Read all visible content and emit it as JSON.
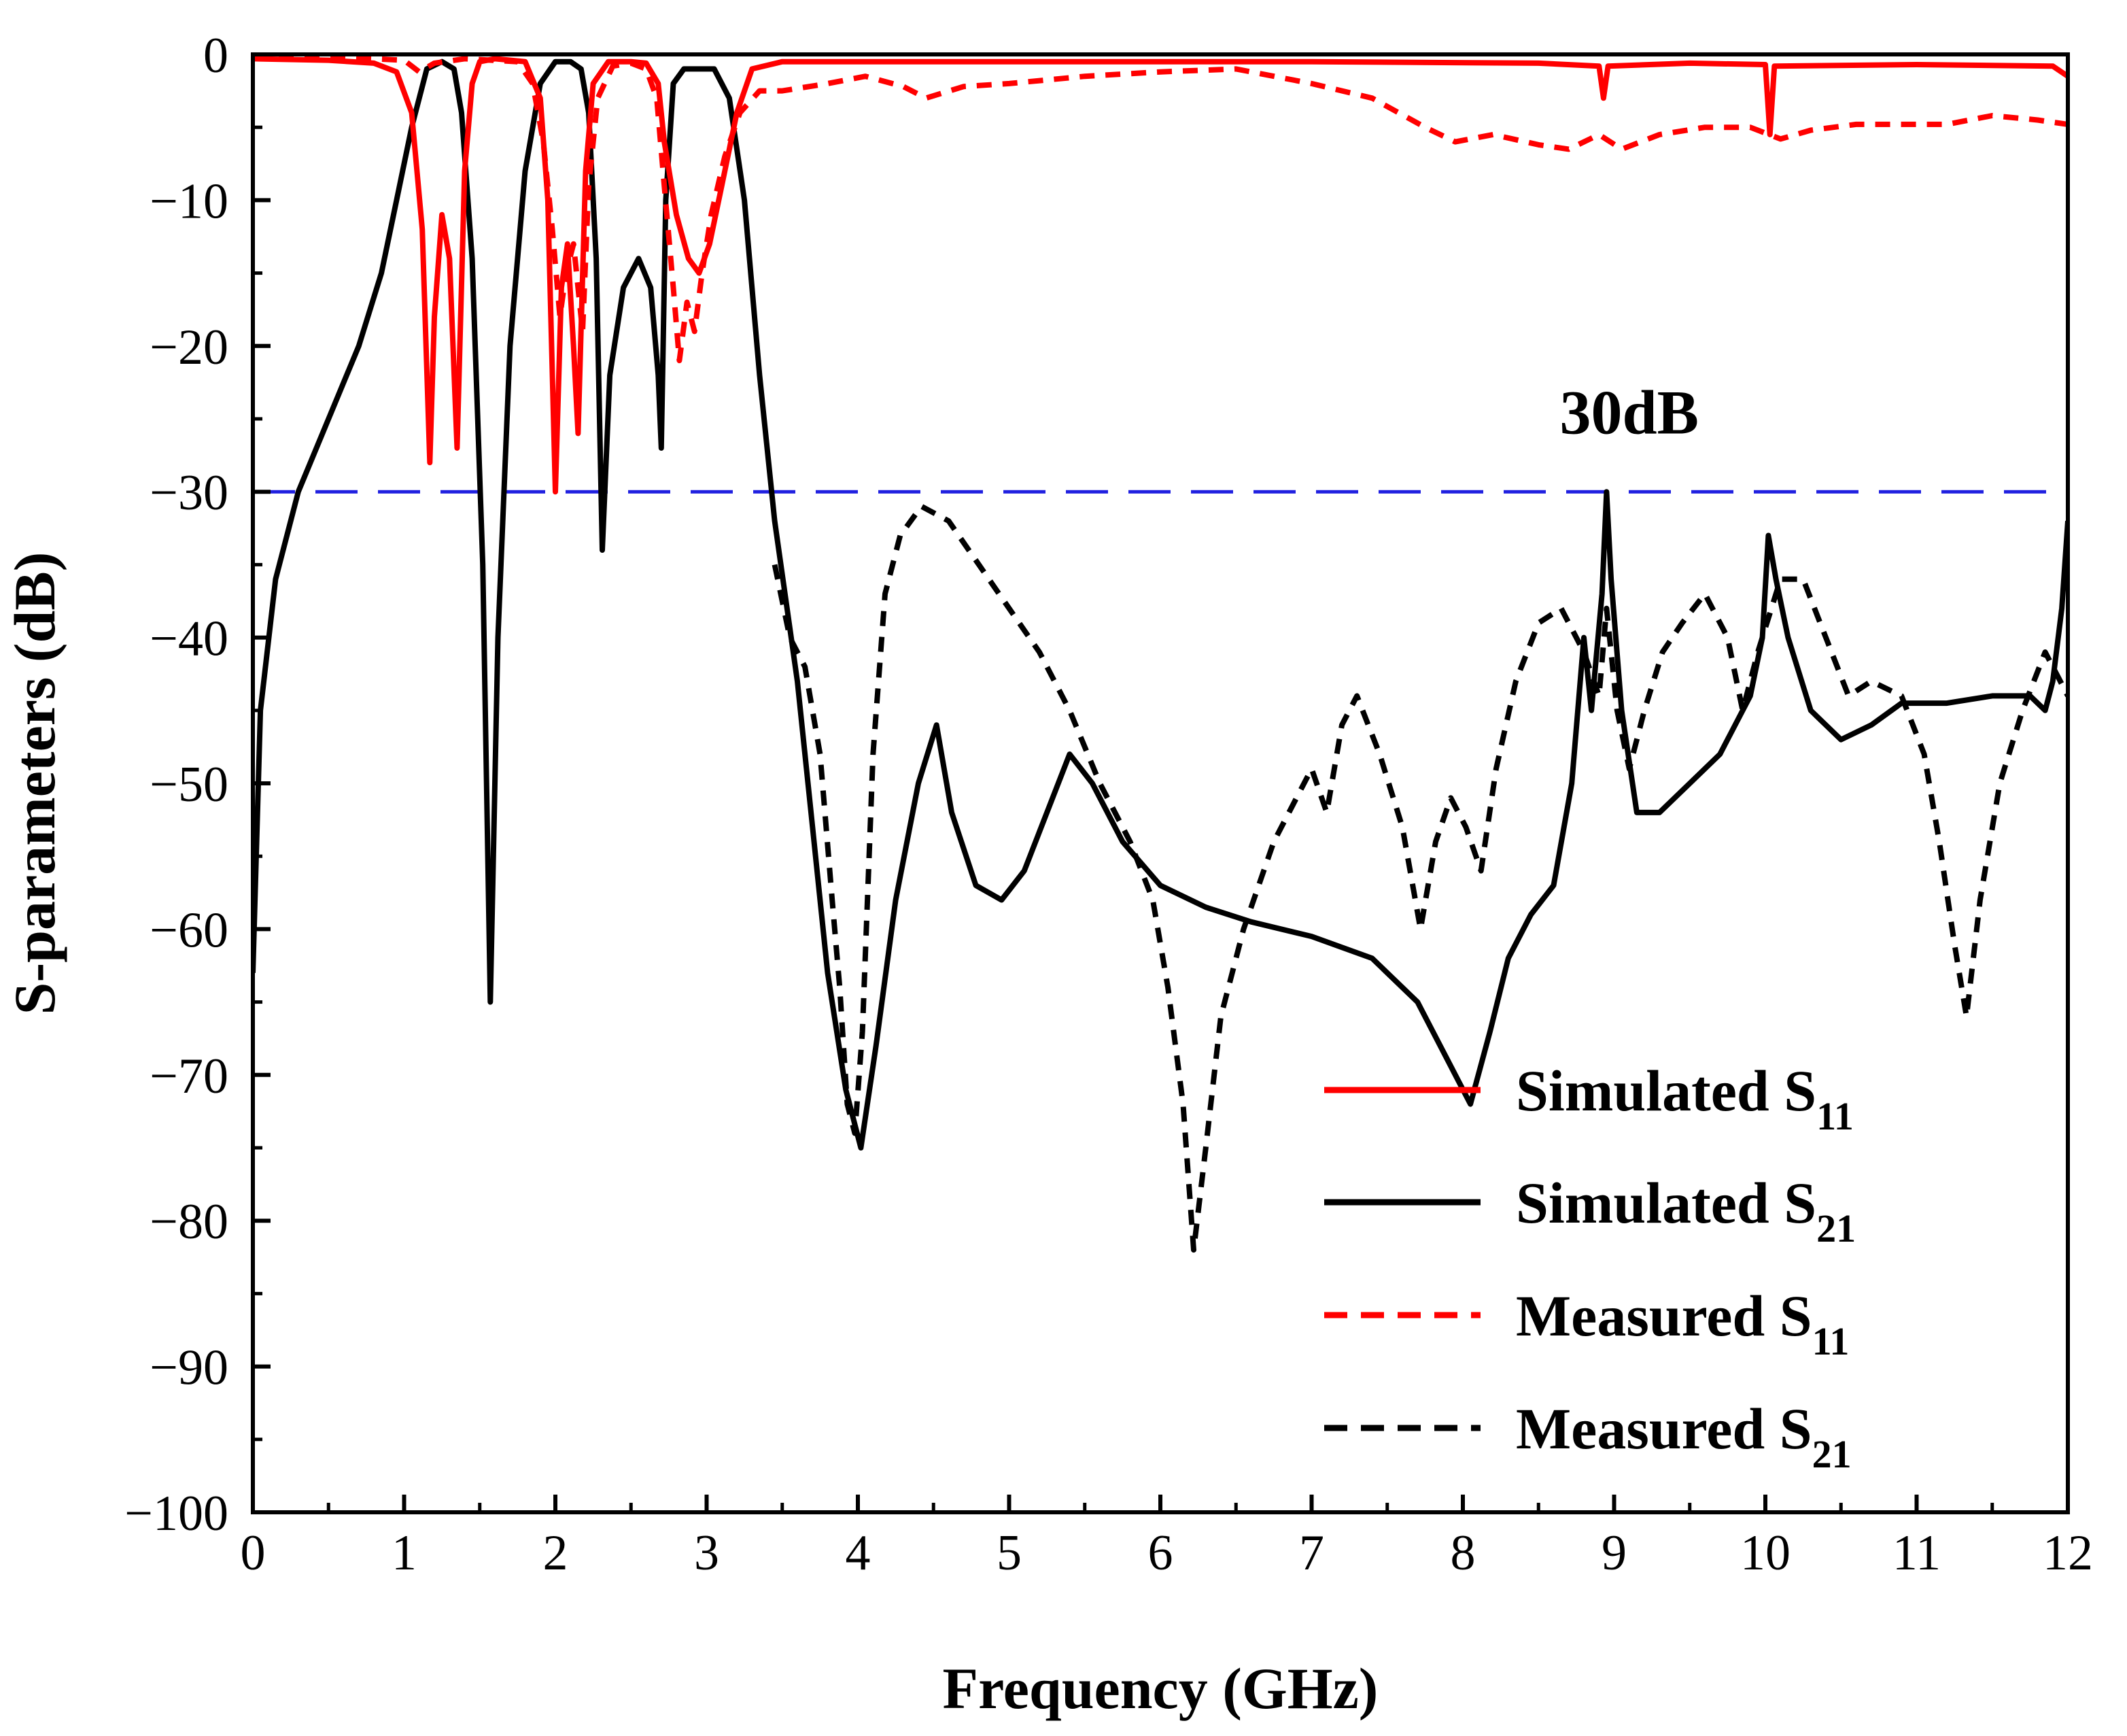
{
  "chart_data": {
    "type": "line",
    "title": "",
    "xlabel": "Frequency (GHz)",
    "ylabel": "S-parameters (dB)",
    "xlim": [
      0,
      12
    ],
    "ylim": [
      -100,
      0
    ],
    "x_ticks": [
      "0",
      "1",
      "2",
      "3",
      "4",
      "5",
      "6",
      "7",
      "8",
      "9",
      "10",
      "11",
      "12"
    ],
    "y_ticks": [
      "0",
      "−10",
      "−20",
      "−30",
      "−40",
      "−50",
      "−60",
      "−70",
      "−80",
      "−90",
      "−100"
    ],
    "grid": false,
    "legend_position": "bottom-right",
    "reference_line": {
      "y": -30,
      "color": "#1f1fe0",
      "style": "dashed"
    },
    "annotation": {
      "text": "30dB",
      "x": 9.1,
      "y": -26
    },
    "series": [
      {
        "name": "Simulated S",
        "subscript": "11",
        "color": "#ff0000",
        "style": "solid",
        "points": [
          [
            0,
            -0.3
          ],
          [
            0.5,
            -0.4
          ],
          [
            0.8,
            -0.6
          ],
          [
            0.95,
            -1.2
          ],
          [
            1.05,
            -4
          ],
          [
            1.12,
            -12
          ],
          [
            1.17,
            -28
          ],
          [
            1.2,
            -18
          ],
          [
            1.25,
            -11
          ],
          [
            1.3,
            -14
          ],
          [
            1.35,
            -27
          ],
          [
            1.4,
            -8
          ],
          [
            1.45,
            -2
          ],
          [
            1.5,
            -0.5
          ],
          [
            1.6,
            -0.3
          ],
          [
            1.8,
            -0.5
          ],
          [
            1.9,
            -3
          ],
          [
            1.95,
            -10
          ],
          [
            2.0,
            -30
          ],
          [
            2.04,
            -16
          ],
          [
            2.08,
            -13
          ],
          [
            2.12,
            -20
          ],
          [
            2.15,
            -26
          ],
          [
            2.2,
            -8
          ],
          [
            2.25,
            -2
          ],
          [
            2.35,
            -0.5
          ],
          [
            2.5,
            -0.5
          ],
          [
            2.6,
            -0.6
          ],
          [
            2.68,
            -2
          ],
          [
            2.72,
            -6
          ],
          [
            2.8,
            -11
          ],
          [
            2.88,
            -14
          ],
          [
            2.95,
            -15
          ],
          [
            3.02,
            -13
          ],
          [
            3.1,
            -9
          ],
          [
            3.2,
            -4
          ],
          [
            3.3,
            -1
          ],
          [
            3.5,
            -0.5
          ],
          [
            5,
            -0.5
          ],
          [
            7,
            -0.5
          ],
          [
            8.5,
            -0.6
          ],
          [
            8.9,
            -0.8
          ],
          [
            8.93,
            -3
          ],
          [
            8.96,
            -0.8
          ],
          [
            9.5,
            -0.6
          ],
          [
            10.0,
            -0.7
          ],
          [
            10.03,
            -5.5
          ],
          [
            10.06,
            -0.8
          ],
          [
            11,
            -0.7
          ],
          [
            11.9,
            -0.8
          ],
          [
            12,
            -1.5
          ]
        ]
      },
      {
        "name": "Simulated S",
        "subscript": "21",
        "color": "#000000",
        "style": "solid",
        "points": [
          [
            0,
            -63
          ],
          [
            0.05,
            -45
          ],
          [
            0.15,
            -36
          ],
          [
            0.3,
            -30
          ],
          [
            0.5,
            -25
          ],
          [
            0.7,
            -20
          ],
          [
            0.85,
            -15
          ],
          [
            0.95,
            -10
          ],
          [
            1.05,
            -5
          ],
          [
            1.15,
            -1
          ],
          [
            1.25,
            -0.5
          ],
          [
            1.33,
            -1
          ],
          [
            1.38,
            -4
          ],
          [
            1.45,
            -14
          ],
          [
            1.52,
            -35
          ],
          [
            1.57,
            -65
          ],
          [
            1.62,
            -40
          ],
          [
            1.7,
            -20
          ],
          [
            1.8,
            -8
          ],
          [
            1.9,
            -2
          ],
          [
            2.0,
            -0.5
          ],
          [
            2.1,
            -0.5
          ],
          [
            2.17,
            -1
          ],
          [
            2.22,
            -4
          ],
          [
            2.27,
            -14
          ],
          [
            2.31,
            -34
          ],
          [
            2.36,
            -22
          ],
          [
            2.45,
            -16
          ],
          [
            2.55,
            -14
          ],
          [
            2.63,
            -16
          ],
          [
            2.68,
            -22
          ],
          [
            2.7,
            -27
          ],
          [
            2.73,
            -10
          ],
          [
            2.78,
            -2
          ],
          [
            2.85,
            -1
          ],
          [
            3.05,
            -1
          ],
          [
            3.15,
            -3
          ],
          [
            3.25,
            -10
          ],
          [
            3.35,
            -22
          ],
          [
            3.45,
            -32
          ],
          [
            3.6,
            -43
          ],
          [
            3.7,
            -53
          ],
          [
            3.8,
            -63
          ],
          [
            3.92,
            -71
          ],
          [
            4.02,
            -75
          ],
          [
            4.12,
            -68
          ],
          [
            4.25,
            -58
          ],
          [
            4.4,
            -50
          ],
          [
            4.52,
            -46
          ],
          [
            4.62,
            -52
          ],
          [
            4.78,
            -57
          ],
          [
            4.95,
            -58
          ],
          [
            5.1,
            -56
          ],
          [
            5.25,
            -52
          ],
          [
            5.4,
            -48
          ],
          [
            5.55,
            -50
          ],
          [
            5.75,
            -54
          ],
          [
            6.0,
            -57
          ],
          [
            6.3,
            -58.5
          ],
          [
            6.6,
            -59.5
          ],
          [
            7.0,
            -60.5
          ],
          [
            7.4,
            -62
          ],
          [
            7.7,
            -65
          ],
          [
            7.9,
            -69
          ],
          [
            8.05,
            -72
          ],
          [
            8.18,
            -67
          ],
          [
            8.3,
            -62
          ],
          [
            8.45,
            -59
          ],
          [
            8.6,
            -57
          ],
          [
            8.72,
            -50
          ],
          [
            8.8,
            -40
          ],
          [
            8.85,
            -45
          ],
          [
            8.92,
            -37
          ],
          [
            8.95,
            -30
          ],
          [
            8.98,
            -36
          ],
          [
            9.05,
            -45
          ],
          [
            9.15,
            -52
          ],
          [
            9.3,
            -52
          ],
          [
            9.5,
            -50
          ],
          [
            9.7,
            -48
          ],
          [
            9.9,
            -44
          ],
          [
            9.98,
            -40
          ],
          [
            10.02,
            -33
          ],
          [
            10.07,
            -36
          ],
          [
            10.15,
            -40
          ],
          [
            10.3,
            -45
          ],
          [
            10.5,
            -47
          ],
          [
            10.7,
            -46
          ],
          [
            10.9,
            -44.5
          ],
          [
            11.2,
            -44.5
          ],
          [
            11.5,
            -44
          ],
          [
            11.75,
            -44
          ],
          [
            11.85,
            -45
          ],
          [
            11.9,
            -43
          ],
          [
            11.96,
            -38
          ],
          [
            12,
            -32
          ]
        ]
      },
      {
        "name": "Measured S",
        "subscript": "11",
        "color": "#ff0000",
        "style": "dashed",
        "points": [
          [
            0,
            -0.2
          ],
          [
            0.6,
            -0.2
          ],
          [
            1.0,
            -0.4
          ],
          [
            1.1,
            -1.2
          ],
          [
            1.2,
            -0.6
          ],
          [
            1.4,
            -0.3
          ],
          [
            1.75,
            -0.5
          ],
          [
            1.85,
            -2
          ],
          [
            1.92,
            -6
          ],
          [
            1.98,
            -12
          ],
          [
            2.03,
            -18
          ],
          [
            2.07,
            -15
          ],
          [
            2.12,
            -13
          ],
          [
            2.18,
            -19
          ],
          [
            2.22,
            -9
          ],
          [
            2.28,
            -3
          ],
          [
            2.38,
            -0.8
          ],
          [
            2.5,
            -0.6
          ],
          [
            2.6,
            -1
          ],
          [
            2.67,
            -3
          ],
          [
            2.72,
            -9
          ],
          [
            2.78,
            -16
          ],
          [
            2.82,
            -21
          ],
          [
            2.87,
            -17
          ],
          [
            2.92,
            -19
          ],
          [
            2.97,
            -15
          ],
          [
            3.03,
            -11
          ],
          [
            3.12,
            -7
          ],
          [
            3.22,
            -4
          ],
          [
            3.35,
            -2.5
          ],
          [
            3.5,
            -2.5
          ],
          [
            3.8,
            -2
          ],
          [
            4.05,
            -1.5
          ],
          [
            4.3,
            -2.2
          ],
          [
            4.45,
            -3
          ],
          [
            4.7,
            -2.2
          ],
          [
            5.0,
            -2
          ],
          [
            5.5,
            -1.5
          ],
          [
            6.0,
            -1.2
          ],
          [
            6.5,
            -1
          ],
          [
            7.0,
            -2
          ],
          [
            7.4,
            -3
          ],
          [
            7.75,
            -5
          ],
          [
            7.95,
            -6
          ],
          [
            8.2,
            -5.5
          ],
          [
            8.5,
            -6.2
          ],
          [
            8.7,
            -6.5
          ],
          [
            8.9,
            -5.5
          ],
          [
            9.05,
            -6.5
          ],
          [
            9.3,
            -5.5
          ],
          [
            9.6,
            -5
          ],
          [
            9.9,
            -5
          ],
          [
            10.1,
            -5.8
          ],
          [
            10.3,
            -5.2
          ],
          [
            10.6,
            -4.8
          ],
          [
            10.9,
            -4.8
          ],
          [
            11.2,
            -4.8
          ],
          [
            11.5,
            -4.2
          ],
          [
            11.8,
            -4.5
          ],
          [
            12,
            -4.8
          ]
        ]
      },
      {
        "name": "Measured S",
        "subscript": "21",
        "color": "#000000",
        "style": "dashed",
        "points": [
          [
            3.45,
            -35
          ],
          [
            3.55,
            -40
          ],
          [
            3.65,
            -42
          ],
          [
            3.75,
            -48
          ],
          [
            3.83,
            -58
          ],
          [
            3.88,
            -64
          ],
          [
            3.93,
            -72
          ],
          [
            3.98,
            -74
          ],
          [
            4.03,
            -67
          ],
          [
            4.1,
            -48
          ],
          [
            4.18,
            -37
          ],
          [
            4.28,
            -33
          ],
          [
            4.42,
            -31
          ],
          [
            4.6,
            -32
          ],
          [
            4.8,
            -35
          ],
          [
            5.0,
            -38
          ],
          [
            5.2,
            -41
          ],
          [
            5.4,
            -45
          ],
          [
            5.6,
            -50
          ],
          [
            5.8,
            -54
          ],
          [
            5.95,
            -58
          ],
          [
            6.05,
            -64
          ],
          [
            6.15,
            -72
          ],
          [
            6.22,
            -82
          ],
          [
            6.3,
            -75
          ],
          [
            6.4,
            -66
          ],
          [
            6.55,
            -60
          ],
          [
            6.75,
            -54
          ],
          [
            6.9,
            -51
          ],
          [
            7.0,
            -49
          ],
          [
            7.1,
            -52
          ],
          [
            7.2,
            -46
          ],
          [
            7.3,
            -44
          ],
          [
            7.45,
            -48
          ],
          [
            7.6,
            -53
          ],
          [
            7.72,
            -60
          ],
          [
            7.82,
            -54
          ],
          [
            7.92,
            -51
          ],
          [
            8.02,
            -53
          ],
          [
            8.12,
            -56
          ],
          [
            8.22,
            -49
          ],
          [
            8.35,
            -43
          ],
          [
            8.5,
            -39
          ],
          [
            8.65,
            -38
          ],
          [
            8.8,
            -41
          ],
          [
            8.9,
            -44
          ],
          [
            8.95,
            -38
          ],
          [
            9.02,
            -45
          ],
          [
            9.1,
            -49
          ],
          [
            9.2,
            -45
          ],
          [
            9.32,
            -41
          ],
          [
            9.45,
            -39
          ],
          [
            9.6,
            -37
          ],
          [
            9.75,
            -40
          ],
          [
            9.85,
            -45
          ],
          [
            9.95,
            -41
          ],
          [
            10.1,
            -36
          ],
          [
            10.25,
            -36
          ],
          [
            10.4,
            -40
          ],
          [
            10.55,
            -44
          ],
          [
            10.7,
            -43
          ],
          [
            10.9,
            -44
          ],
          [
            11.05,
            -48
          ],
          [
            11.15,
            -54
          ],
          [
            11.25,
            -61
          ],
          [
            11.33,
            -66
          ],
          [
            11.42,
            -58
          ],
          [
            11.55,
            -50
          ],
          [
            11.7,
            -45
          ],
          [
            11.85,
            -41
          ],
          [
            11.95,
            -43
          ],
          [
            12,
            -44
          ]
        ]
      }
    ]
  }
}
